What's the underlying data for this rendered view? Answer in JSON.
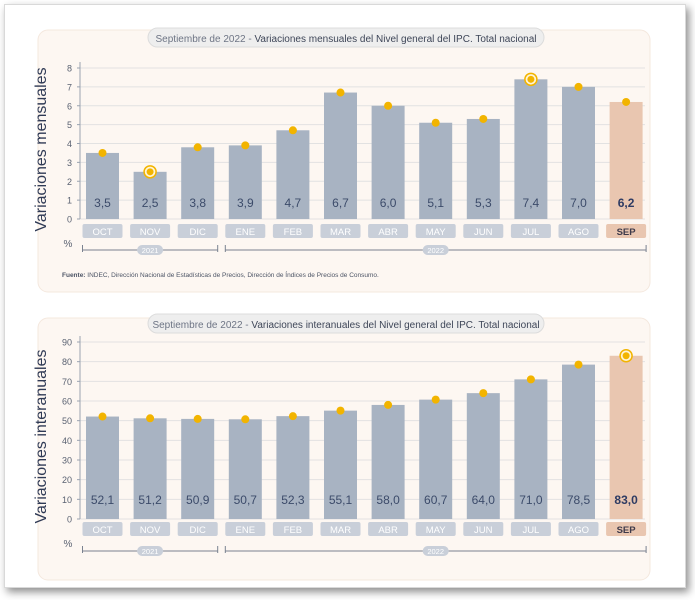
{
  "colors": {
    "bar": "#a8b3c2",
    "highlight_bar": "#e9c6b0",
    "dot": "#f2b400",
    "panel_bg": "#fdf7f2",
    "label_text": "#3c4b6a",
    "tab_bg": "#c9cfd9",
    "grid": "#e2e2e2"
  },
  "chart_data": [
    {
      "type": "bar",
      "title": "Septiembre de 2022 - Variaciones mensuales del Nivel general del IPC. Total nacional",
      "title_lead": "Septiembre de 2022 - ",
      "title_main": "Variaciones mensuales del Nivel general del IPC. Total nacional",
      "ylabel": "Variaciones mensuales",
      "yunit": "%",
      "ylim": [
        0,
        8
      ],
      "yticks": [
        0,
        1,
        2,
        3,
        4,
        5,
        6,
        7,
        8
      ],
      "categories": [
        "OCT",
        "NOV",
        "DIC",
        "ENE",
        "FEB",
        "MAR",
        "ABR",
        "MAY",
        "JUN",
        "JUL",
        "AGO",
        "SEP"
      ],
      "values": [
        3.5,
        2.5,
        3.8,
        3.9,
        4.7,
        6.7,
        6.0,
        5.1,
        5.3,
        7.4,
        7.0,
        6.2
      ],
      "value_labels": [
        "3,5",
        "2,5",
        "3,8",
        "3,9",
        "4,7",
        "6,7",
        "6,0",
        "5,1",
        "5,3",
        "7,4",
        "7,0",
        "6,2"
      ],
      "ringed": [
        1,
        9
      ],
      "highlight_index": 11,
      "years": [
        {
          "label": "2021",
          "from": 0,
          "to": 2
        },
        {
          "label": "2022",
          "from": 3,
          "to": 11
        }
      ],
      "source_label": "Fuente:",
      "source_text": " INDEC, Dirección Nacional de Estadísticas de Precios, Dirección de Índices de Precios de Consumo."
    },
    {
      "type": "bar",
      "title": "Septiembre de 2022 - Variaciones interanuales del Nivel general del IPC. Total nacional",
      "title_lead": "Septiembre de 2022 - ",
      "title_main": "Variaciones interanuales del Nivel general del IPC. Total nacional",
      "ylabel": "Variaciones interanuales",
      "yunit": "%",
      "ylim": [
        0,
        90
      ],
      "yticks": [
        0,
        10,
        20,
        30,
        40,
        50,
        60,
        70,
        80,
        90
      ],
      "categories": [
        "OCT",
        "NOV",
        "DIC",
        "ENE",
        "FEB",
        "MAR",
        "ABR",
        "MAY",
        "JUN",
        "JUL",
        "AGO",
        "SEP"
      ],
      "values": [
        52.1,
        51.2,
        50.9,
        50.7,
        52.3,
        55.1,
        58.0,
        60.7,
        64.0,
        71.0,
        78.5,
        83.0
      ],
      "value_labels": [
        "52,1",
        "51,2",
        "50,9",
        "50,7",
        "52,3",
        "55,1",
        "58,0",
        "60,7",
        "64,0",
        "71,0",
        "78,5",
        "83,0"
      ],
      "ringed": [
        11
      ],
      "highlight_index": 11,
      "years": [
        {
          "label": "2021",
          "from": 0,
          "to": 2
        },
        {
          "label": "2022",
          "from": 3,
          "to": 11
        }
      ]
    }
  ]
}
